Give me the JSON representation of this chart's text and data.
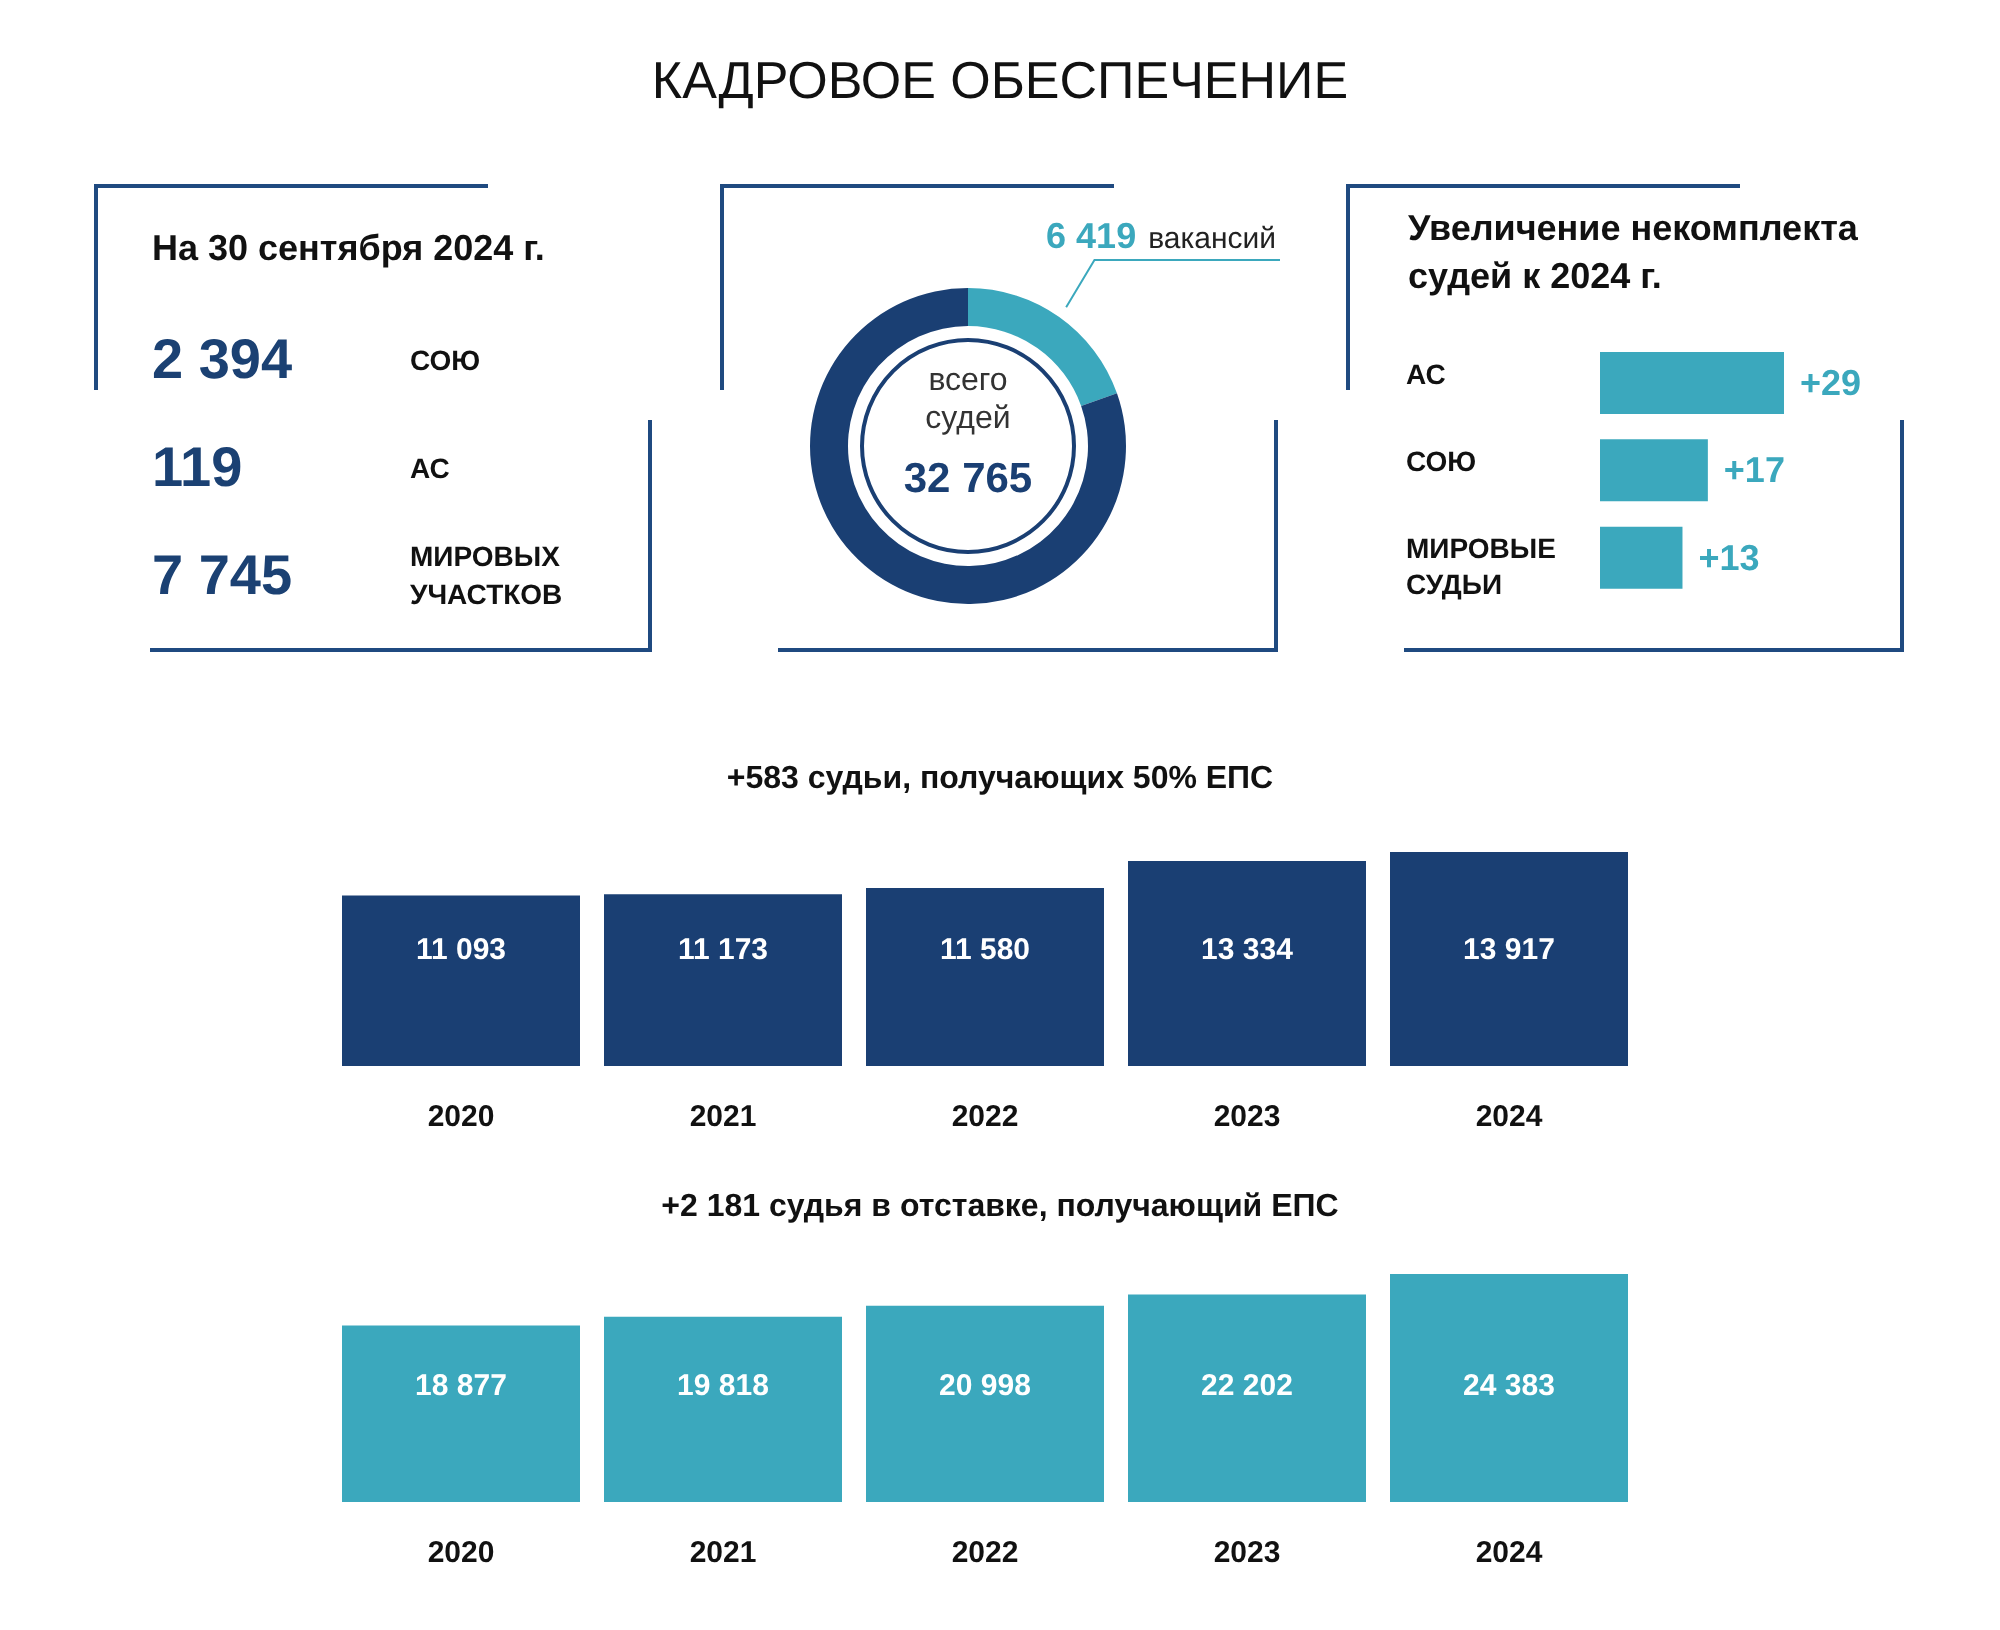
{
  "chart_data": [
    {
      "type": "other",
      "title": "КАДРОВОЕ ОБЕСПЕЧЕНИЕ"
    },
    {
      "type": "other",
      "title": "На 30 сентября 2024 г.",
      "categories": [
        "СОЮ",
        "АС",
        "МИРОВЫХ УЧАСТКОВ"
      ],
      "values": [
        2394,
        119,
        7745
      ],
      "value_labels": [
        "2 394",
        "119",
        "7 745"
      ],
      "color": "#1b4173"
    },
    {
      "type": "donut",
      "categories": [
        "вакансий",
        null
      ],
      "values": [
        6419,
        26346
      ],
      "value_labels": [
        "6 419",
        null
      ],
      "colors": [
        "#3ba8bd",
        "#1a3f73"
      ],
      "annotations": [
        "всего судей",
        "32 765"
      ]
    },
    {
      "type": "bar",
      "orientation": "horizontal",
      "title": "Увеличение некомплекта судей к 2024 г.",
      "categories": [
        "АС",
        "СОЮ",
        "МИРОВЫЕ СУДЬИ"
      ],
      "values": [
        29,
        17,
        13
      ],
      "value_labels": [
        "+29",
        "+17",
        "+13"
      ],
      "color": "#3ba8bd"
    },
    {
      "type": "bar",
      "title": "+583 судьи, получающих 50% ЕПС",
      "categories": [
        "2020",
        "2021",
        "2022",
        "2023",
        "2024"
      ],
      "values": [
        11093,
        11173,
        11580,
        13334,
        13917
      ],
      "value_labels": [
        "11 093",
        "11 173",
        "11 580",
        "13 334",
        "13 917"
      ],
      "color": "#1a3f73"
    },
    {
      "type": "bar",
      "title": "+2 181 судья в отставке, получающий ЕПС",
      "categories": [
        "2020",
        "2021",
        "2022",
        "2023",
        "2024"
      ],
      "values": [
        18877,
        19818,
        20998,
        22202,
        24383
      ],
      "value_labels": [
        "18 877",
        "19 818",
        "20 998",
        "22 202",
        "24 383"
      ],
      "color": "#3ba8bd"
    }
  ]
}
